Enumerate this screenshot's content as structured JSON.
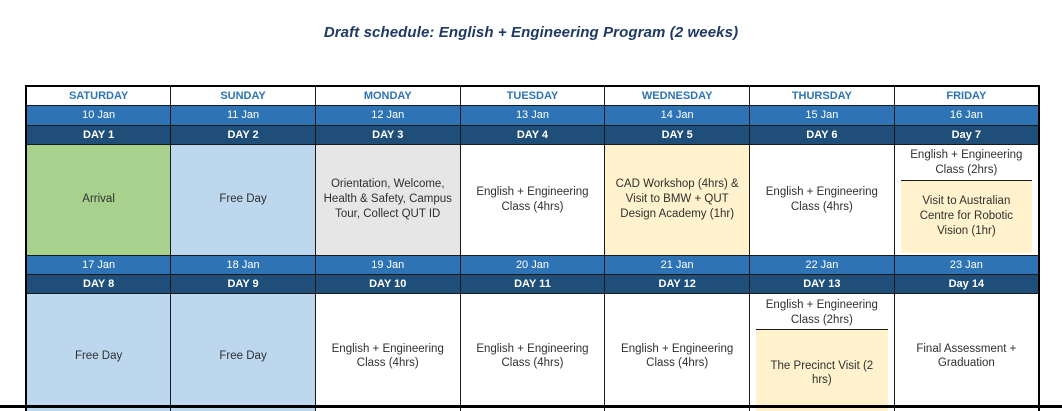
{
  "title": "Draft schedule: English + Engineering Program (2 weeks)",
  "colors": {
    "title_text": "#1f3864",
    "weekday_text": "#2e74b5",
    "date_row_bg": "#2e74b5",
    "daynum_row_bg": "#1f4e79",
    "arrival_green": "#a9d18e",
    "freeday_blue": "#bdd7ee",
    "orientation_gray": "#e7e6e6",
    "excursion_yellow": "#fff2cc",
    "cell_text": "#303030",
    "border_black": "#000000"
  },
  "table": {
    "weekdays": [
      "SATURDAY",
      "SUNDAY",
      "MONDAY",
      "TUESDAY",
      "WEDNESDAY",
      "THURSDAY",
      "FRIDAY"
    ],
    "week1": {
      "dates": [
        "10 Jan",
        "11 Jan",
        "12 Jan",
        "13 Jan",
        "14 Jan",
        "15 Jan",
        "16 Jan"
      ],
      "day_labels": [
        "DAY 1",
        "DAY 2",
        "DAY 3",
        "DAY 4",
        "DAY 5",
        "DAY 6",
        "Day 7"
      ],
      "activities": {
        "saturday": "Arrival",
        "sunday": "Free Day",
        "monday": "Orientation, Welcome, Health & Safety, Campus Tour, Collect QUT ID",
        "tuesday": "English + Engineering Class (4hrs)",
        "wednesday": "CAD Workshop (4hrs) & Visit to BMW + QUT Design Academy (1hr)",
        "thursday": "English + Engineering Class (4hrs)",
        "friday_top": "English + Engineering Class (2hrs)",
        "friday_bottom": "Visit to Australian Centre for Robotic Vision (1hr)"
      }
    },
    "week2": {
      "dates": [
        "17 Jan",
        "18 Jan",
        "19 Jan",
        "20 Jan",
        "21 Jan",
        "22 Jan",
        "23 Jan"
      ],
      "day_labels": [
        "DAY 8",
        "DAY 9",
        "DAY 10",
        "DAY 11",
        "DAY 12",
        "DAY 13",
        "Day 14"
      ],
      "activities": {
        "saturday": "Free Day",
        "sunday": "Free Day",
        "monday": "English + Engineering Class (4hrs)",
        "tuesday": "English + Engineering Class (4hrs)",
        "wednesday": "English + Engineering Class (4hrs)",
        "thursday_top": "English + Engineering Class (2hrs)",
        "thursday_bottom": "The Precinct Visit (2 hrs)",
        "friday": "Final Assessment + Graduation"
      }
    }
  }
}
